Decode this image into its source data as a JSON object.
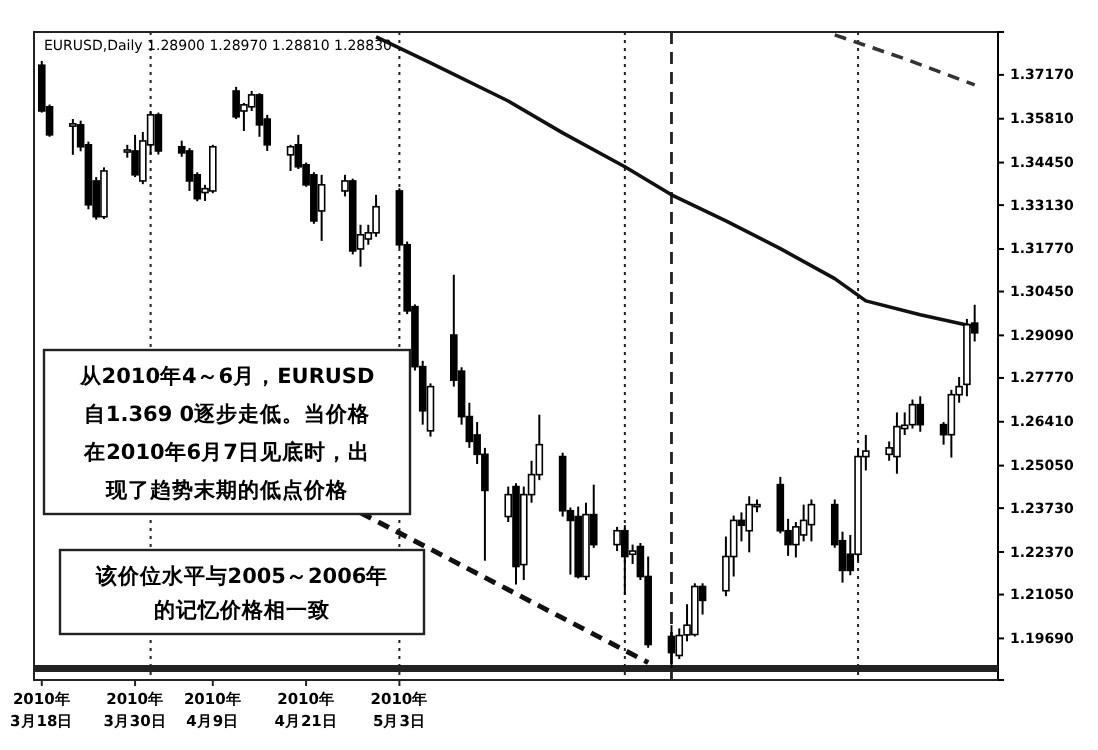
{
  "chart_data": {
    "type": "candlestick",
    "title": "EURUSD,Daily  1.28900 1.28970 1.28810 1.28830",
    "annotations": [
      "从2010年4～6月，EURUSD自1.369 0逐步走低。当价格在2010年6月7日见底时，出现了趋势末期的低点价格",
      "该价位水平与2005～2006年的记忆价格相一致"
    ],
    "x": [
      "2010-03-18",
      "2010-03-19",
      "2010-03-22",
      "2010-03-23",
      "2010-03-24",
      "2010-03-25",
      "2010-03-26",
      "2010-03-29",
      "2010-03-30",
      "2010-03-31",
      "2010-04-01",
      "2010-04-02",
      "2010-04-05",
      "2010-04-06",
      "2010-04-07",
      "2010-04-08",
      "2010-04-09",
      "2010-04-12",
      "2010-04-13",
      "2010-04-14",
      "2010-04-15",
      "2010-04-16",
      "2010-04-19",
      "2010-04-20",
      "2010-04-21",
      "2010-04-22",
      "2010-04-23",
      "2010-04-26",
      "2010-04-27",
      "2010-04-28",
      "2010-04-29",
      "2010-04-30",
      "2010-05-03",
      "2010-05-04",
      "2010-05-05",
      "2010-05-06",
      "2010-05-07",
      "2010-05-10",
      "2010-05-11",
      "2010-05-12",
      "2010-05-13",
      "2010-05-14",
      "2010-05-17",
      "2010-05-18",
      "2010-05-19",
      "2010-05-20",
      "2010-05-21",
      "2010-05-24",
      "2010-05-25",
      "2010-05-26",
      "2010-05-27",
      "2010-05-28",
      "2010-05-31",
      "2010-06-01",
      "2010-06-02",
      "2010-06-03",
      "2010-06-04",
      "2010-06-07",
      "2010-06-08",
      "2010-06-09",
      "2010-06-10",
      "2010-06-11",
      "2010-06-14",
      "2010-06-15",
      "2010-06-16",
      "2010-06-17",
      "2010-06-18",
      "2010-06-21",
      "2010-06-22",
      "2010-06-23",
      "2010-06-24",
      "2010-06-25",
      "2010-06-28",
      "2010-06-29",
      "2010-06-30",
      "2010-07-01",
      "2010-07-02",
      "2010-07-05",
      "2010-07-06",
      "2010-07-07",
      "2010-07-08",
      "2010-07-09",
      "2010-07-12",
      "2010-07-13",
      "2010-07-14",
      "2010-07-15",
      "2010-07-16"
    ],
    "ohlc": [
      [
        1.3747,
        1.376,
        1.36,
        1.3605
      ],
      [
        1.3618,
        1.3625,
        1.3525,
        1.3531
      ],
      [
        1.3558,
        1.358,
        1.3469,
        1.3565
      ],
      [
        1.3562,
        1.3575,
        1.348,
        1.3494
      ],
      [
        1.35,
        1.351,
        1.33,
        1.3314
      ],
      [
        1.3388,
        1.34,
        1.3268,
        1.3277
      ],
      [
        1.3277,
        1.343,
        1.327,
        1.3419
      ],
      [
        1.3478,
        1.35,
        1.346,
        1.3484
      ],
      [
        1.3481,
        1.3531,
        1.34,
        1.3407
      ],
      [
        1.3388,
        1.354,
        1.3378,
        1.3512
      ],
      [
        1.35,
        1.3605,
        1.347,
        1.3593
      ],
      [
        1.3593,
        1.36,
        1.347,
        1.3481
      ],
      [
        1.3494,
        1.3513,
        1.3463,
        1.3475
      ],
      [
        1.3481,
        1.349,
        1.3357,
        1.3388
      ],
      [
        1.3407,
        1.3415,
        1.3325,
        1.3333
      ],
      [
        1.3352,
        1.3376,
        1.3326,
        1.3364
      ],
      [
        1.3357,
        1.35,
        1.335,
        1.3494
      ],
      [
        1.3667,
        1.368,
        1.358,
        1.3587
      ],
      [
        1.3605,
        1.363,
        1.3543,
        1.3624
      ],
      [
        1.3618,
        1.3667,
        1.3605,
        1.3655
      ],
      [
        1.3655,
        1.366,
        1.3525,
        1.3562
      ],
      [
        1.358,
        1.3593,
        1.3481,
        1.35
      ],
      [
        1.3469,
        1.35,
        1.3419,
        1.3494
      ],
      [
        1.35,
        1.3531,
        1.3425,
        1.3432
      ],
      [
        1.3438,
        1.3445,
        1.337,
        1.3376
      ],
      [
        1.3407,
        1.3415,
        1.3255,
        1.3264
      ],
      [
        1.3295,
        1.3407,
        1.3202,
        1.3376
      ],
      [
        1.3357,
        1.3407,
        1.334,
        1.3388
      ],
      [
        1.3388,
        1.3395,
        1.316,
        1.3171
      ],
      [
        1.3177,
        1.3252,
        1.3122,
        1.3221
      ],
      [
        1.3208,
        1.3252,
        1.319,
        1.3227
      ],
      [
        1.3227,
        1.3345,
        1.3215,
        1.3308
      ],
      [
        1.3357,
        1.3365,
        1.318,
        1.319
      ],
      [
        1.319,
        1.32,
        1.2975,
        1.2985
      ],
      [
        1.2998,
        1.3005,
        1.28,
        1.2812
      ],
      [
        1.2812,
        1.283,
        1.2632,
        1.2675
      ],
      [
        1.2613,
        1.276,
        1.2595,
        1.275
      ],
      [
        1.291,
        1.3097,
        1.275,
        1.277
      ],
      [
        1.2798,
        1.281,
        1.2632,
        1.2657
      ],
      [
        1.2657,
        1.27,
        1.256,
        1.258
      ],
      [
        1.26,
        1.264,
        1.251,
        1.254
      ],
      [
        1.254,
        1.256,
        1.221,
        1.2428
      ],
      [
        1.2347,
        1.244,
        1.233,
        1.2415
      ],
      [
        1.244,
        1.245,
        1.2136,
        1.2192
      ],
      [
        1.2198,
        1.244,
        1.215,
        1.2415
      ],
      [
        1.2415,
        1.252,
        1.239,
        1.2477
      ],
      [
        1.2477,
        1.2663,
        1.246,
        1.257
      ],
      [
        1.2533,
        1.2545,
        1.2347,
        1.2365
      ],
      [
        1.2365,
        1.2375,
        1.2167,
        1.2335
      ],
      [
        1.2347,
        1.2378,
        1.2155,
        1.2161
      ],
      [
        1.2161,
        1.239,
        1.215,
        1.2353
      ],
      [
        1.2353,
        1.2446,
        1.225,
        1.226
      ],
      [
        1.226,
        1.2315,
        1.224,
        1.2303
      ],
      [
        1.2303,
        1.232,
        1.2105,
        1.2223
      ],
      [
        1.223,
        1.226,
        1.22,
        1.224
      ],
      [
        1.2254,
        1.2265,
        1.215,
        1.2161
      ],
      [
        1.2161,
        1.2223,
        1.194,
        1.195
      ],
      [
        1.1975,
        1.201,
        1.1877,
        1.1925
      ],
      [
        1.1916,
        1.2,
        1.1905,
        1.1978
      ],
      [
        1.198,
        1.2075,
        1.196,
        1.201
      ],
      [
        1.1981,
        1.214,
        1.1975,
        1.213
      ],
      [
        1.213,
        1.214,
        1.2043,
        1.2087
      ],
      [
        1.2117,
        1.2285,
        1.21,
        1.2223
      ],
      [
        1.2223,
        1.235,
        1.2161,
        1.2335
      ],
      [
        1.2335,
        1.236,
        1.227,
        1.232
      ],
      [
        1.2303,
        1.241,
        1.2236,
        1.2384
      ],
      [
        1.2378,
        1.24,
        1.236,
        1.2384
      ],
      [
        1.2446,
        1.247,
        1.2295,
        1.2303
      ],
      [
        1.2303,
        1.234,
        1.2225,
        1.226
      ],
      [
        1.226,
        1.233,
        1.222,
        1.2315
      ],
      [
        1.229,
        1.2384,
        1.227,
        1.2335
      ],
      [
        1.2322,
        1.24,
        1.227,
        1.2384
      ],
      [
        1.2384,
        1.24,
        1.225,
        1.226
      ],
      [
        1.2272,
        1.23,
        1.2142,
        1.218
      ],
      [
        1.223,
        1.229,
        1.2165,
        1.218
      ],
      [
        1.223,
        1.256,
        1.221,
        1.2533
      ],
      [
        1.2533,
        1.26,
        1.249,
        1.255
      ],
      [
        1.254,
        1.258,
        1.252,
        1.256
      ],
      [
        1.2533,
        1.267,
        1.248,
        1.2626
      ],
      [
        1.262,
        1.267,
        1.26,
        1.263
      ],
      [
        1.2632,
        1.271,
        1.262,
        1.2694
      ],
      [
        1.2694,
        1.272,
        1.261,
        1.2632
      ],
      [
        1.2632,
        1.264,
        1.257,
        1.2601
      ],
      [
        1.2601,
        1.274,
        1.253,
        1.2725
      ],
      [
        1.2725,
        1.278,
        1.27,
        1.275
      ],
      [
        1.2757,
        1.296,
        1.272,
        1.2942
      ],
      [
        1.2947,
        1.3004,
        1.289,
        1.2917
      ]
    ],
    "series": [
      {
        "type": "line",
        "color": "#111111",
        "line_style": "solid",
        "x": [
          "2010-04-30",
          "2010-05-07",
          "2010-05-17",
          "2010-05-24",
          "2010-06-01",
          "2010-06-07",
          "2010-06-14",
          "2010-06-21",
          "2010-06-28",
          "2010-07-02",
          "2010-07-09",
          "2010-07-16"
        ],
        "values": [
          1.3835,
          1.3754,
          1.3636,
          1.3537,
          1.3432,
          1.3345,
          1.3264,
          1.3178,
          1.3085,
          1.3016,
          1.2973,
          1.2936
        ]
      },
      {
        "type": "line",
        "color": "#333333",
        "line_style": "dashed",
        "x": [
          "2010-06-28",
          "2010-07-07",
          "2010-07-16"
        ],
        "values": [
          1.3841,
          1.3767,
          1.3686
        ]
      },
      {
        "type": "line",
        "color": "#111111",
        "line_style": "dashed",
        "x": [
          "2010-04-28",
          "2010-06-04"
        ],
        "values": [
          1.2359,
          1.1894
        ]
      }
    ],
    "xlim": [
      "2010-03-17",
      "2010-07-19"
    ],
    "ylim": [
      1.184,
      1.385
    ],
    "xticks": [
      {
        "value": "2010-03-18",
        "label": "2010年\n3月18日"
      },
      {
        "value": "2010-03-30",
        "label": "2010年\n3月30日"
      },
      {
        "value": "2010-04-09",
        "label": "2010年\n4月9日"
      },
      {
        "value": "2010-04-21",
        "label": "2010年\n4月21日"
      },
      {
        "value": "2010-05-03",
        "label": "2010年\n5月3日"
      }
    ],
    "yticks": [
      {
        "value": 1.3717,
        "label": "1.37170"
      },
      {
        "value": 1.3581,
        "label": "1.35810"
      },
      {
        "value": 1.3445,
        "label": "1.34450"
      },
      {
        "value": 1.3313,
        "label": "1.33130"
      },
      {
        "value": 1.3177,
        "label": "1.31770"
      },
      {
        "value": 1.3045,
        "label": "1.30450"
      },
      {
        "value": 1.2909,
        "label": "1.29090"
      },
      {
        "value": 1.2777,
        "label": "1.27770"
      },
      {
        "value": 1.2641,
        "label": "1.26410"
      },
      {
        "value": 1.2505,
        "label": "1.25050"
      },
      {
        "value": 1.2373,
        "label": "1.23730"
      },
      {
        "value": 1.2237,
        "label": "1.22370"
      },
      {
        "value": 1.2105,
        "label": "1.21050"
      },
      {
        "value": 1.1969,
        "label": "1.19690"
      }
    ],
    "ref_lines": [
      {
        "axis": "x",
        "value": "2010-04-01",
        "line_style": "dotted"
      },
      {
        "axis": "x",
        "value": "2010-05-03",
        "line_style": "dotted"
      },
      {
        "axis": "x",
        "value": "2010-06-01",
        "line_style": "dotted"
      },
      {
        "axis": "x",
        "value": "2010-07-01",
        "line_style": "dotted"
      },
      {
        "axis": "x",
        "value": "2010-06-07",
        "line_style": "dashed"
      },
      {
        "axis": "y",
        "value": 1.1876,
        "line_style": "solid"
      }
    ]
  }
}
